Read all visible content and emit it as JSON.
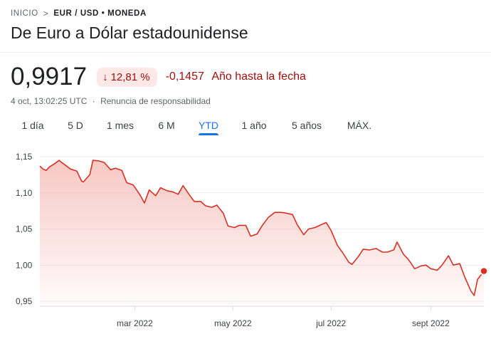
{
  "breadcrumb": {
    "home": "INICIO",
    "separator": ">",
    "pair": "EUR / USD",
    "bullet": "•",
    "type": "MONEDA"
  },
  "title": "De Euro a Dólar estadounidense",
  "quote": {
    "price": "0,9917",
    "change_percent": "12,81 %",
    "change_arrow": "arrow-down-icon",
    "change_value": "-0,1457",
    "period_label": "Año hasta la fecha",
    "timestamp": "4 oct, 13:02:25 UTC",
    "meta_separator": "·",
    "disclaimer": "Renuncia de responsabilidad"
  },
  "tabs": [
    {
      "label": "1 día",
      "active": false
    },
    {
      "label": "5 D",
      "active": false
    },
    {
      "label": "1 mes",
      "active": false
    },
    {
      "label": "6 M",
      "active": false
    },
    {
      "label": "YTD",
      "active": true
    },
    {
      "label": "1 año",
      "active": false
    },
    {
      "label": "5 años",
      "active": false
    },
    {
      "label": "MÁX.",
      "active": false
    }
  ],
  "colors": {
    "line": "#d93025",
    "fill": "#f4b6b0",
    "negative_text": "#a50e0e",
    "accent": "#1a73e8"
  },
  "chart_data": {
    "type": "area",
    "grid": true,
    "ylim": [
      0.95,
      1.15
    ],
    "yticks": [
      "1,15",
      "1,10",
      "1,05",
      "1,00",
      "0,95"
    ],
    "ytick_values": [
      1.15,
      1.1,
      1.05,
      1.0,
      0.95
    ],
    "xlim": [
      "2022-01-01",
      "2022-10-04"
    ],
    "xticks": [
      {
        "label": "mar 2022",
        "date": "2022-03-01"
      },
      {
        "label": "may 2022",
        "date": "2022-05-01"
      },
      {
        "label": "jul 2022",
        "date": "2022-07-01"
      },
      {
        "label": "sept 2022",
        "date": "2022-09-01"
      }
    ],
    "last_point_marker": true,
    "series": [
      {
        "x": [
          "2022-01-01",
          "2022-01-03",
          "2022-01-05",
          "2022-01-07",
          "2022-01-10",
          "2022-01-13",
          "2022-01-14",
          "2022-01-17",
          "2022-01-20",
          "2022-01-24",
          "2022-01-27",
          "2022-01-28",
          "2022-02-01",
          "2022-02-03",
          "2022-02-07",
          "2022-02-10",
          "2022-02-14",
          "2022-02-17",
          "2022-02-21",
          "2022-02-24",
          "2022-02-28",
          "2022-03-04",
          "2022-03-07",
          "2022-03-10",
          "2022-03-14",
          "2022-03-17",
          "2022-03-21",
          "2022-03-25",
          "2022-03-28",
          "2022-03-31",
          "2022-04-04",
          "2022-04-07",
          "2022-04-11",
          "2022-04-14",
          "2022-04-18",
          "2022-04-21",
          "2022-04-25",
          "2022-04-28",
          "2022-05-02",
          "2022-05-05",
          "2022-05-09",
          "2022-05-12",
          "2022-05-16",
          "2022-05-19",
          "2022-05-23",
          "2022-05-27",
          "2022-05-31",
          "2022-06-03",
          "2022-06-07",
          "2022-06-10",
          "2022-06-14",
          "2022-06-17",
          "2022-06-21",
          "2022-06-24",
          "2022-06-28",
          "2022-07-01",
          "2022-07-05",
          "2022-07-08",
          "2022-07-12",
          "2022-07-14",
          "2022-07-18",
          "2022-07-21",
          "2022-07-25",
          "2022-07-29",
          "2022-08-02",
          "2022-08-05",
          "2022-08-09",
          "2022-08-11",
          "2022-08-15",
          "2022-08-18",
          "2022-08-22",
          "2022-08-26",
          "2022-08-29",
          "2022-09-01",
          "2022-09-05",
          "2022-09-08",
          "2022-09-12",
          "2022-09-15",
          "2022-09-19",
          "2022-09-22",
          "2022-09-26",
          "2022-09-28",
          "2022-09-30",
          "2022-10-04"
        ],
        "values": [
          1.137,
          1.133,
          1.131,
          1.136,
          1.14,
          1.145,
          1.143,
          1.138,
          1.133,
          1.13,
          1.116,
          1.115,
          1.125,
          1.145,
          1.144,
          1.142,
          1.132,
          1.134,
          1.131,
          1.114,
          1.111,
          1.098,
          1.086,
          1.104,
          1.096,
          1.107,
          1.103,
          1.101,
          1.098,
          1.11,
          1.097,
          1.088,
          1.088,
          1.082,
          1.08,
          1.083,
          1.072,
          1.054,
          1.052,
          1.055,
          1.055,
          1.04,
          1.043,
          1.054,
          1.066,
          1.073,
          1.073,
          1.072,
          1.07,
          1.056,
          1.042,
          1.05,
          1.052,
          1.055,
          1.059,
          1.048,
          1.027,
          1.018,
          1.004,
          1.001,
          1.012,
          1.022,
          1.021,
          1.023,
          1.018,
          1.018,
          1.021,
          1.032,
          1.015,
          1.008,
          0.995,
          0.999,
          1.0,
          0.995,
          0.993,
          1.0,
          1.013,
          1.0,
          1.002,
          0.984,
          0.964,
          0.958,
          0.98,
          0.9917
        ]
      }
    ]
  }
}
